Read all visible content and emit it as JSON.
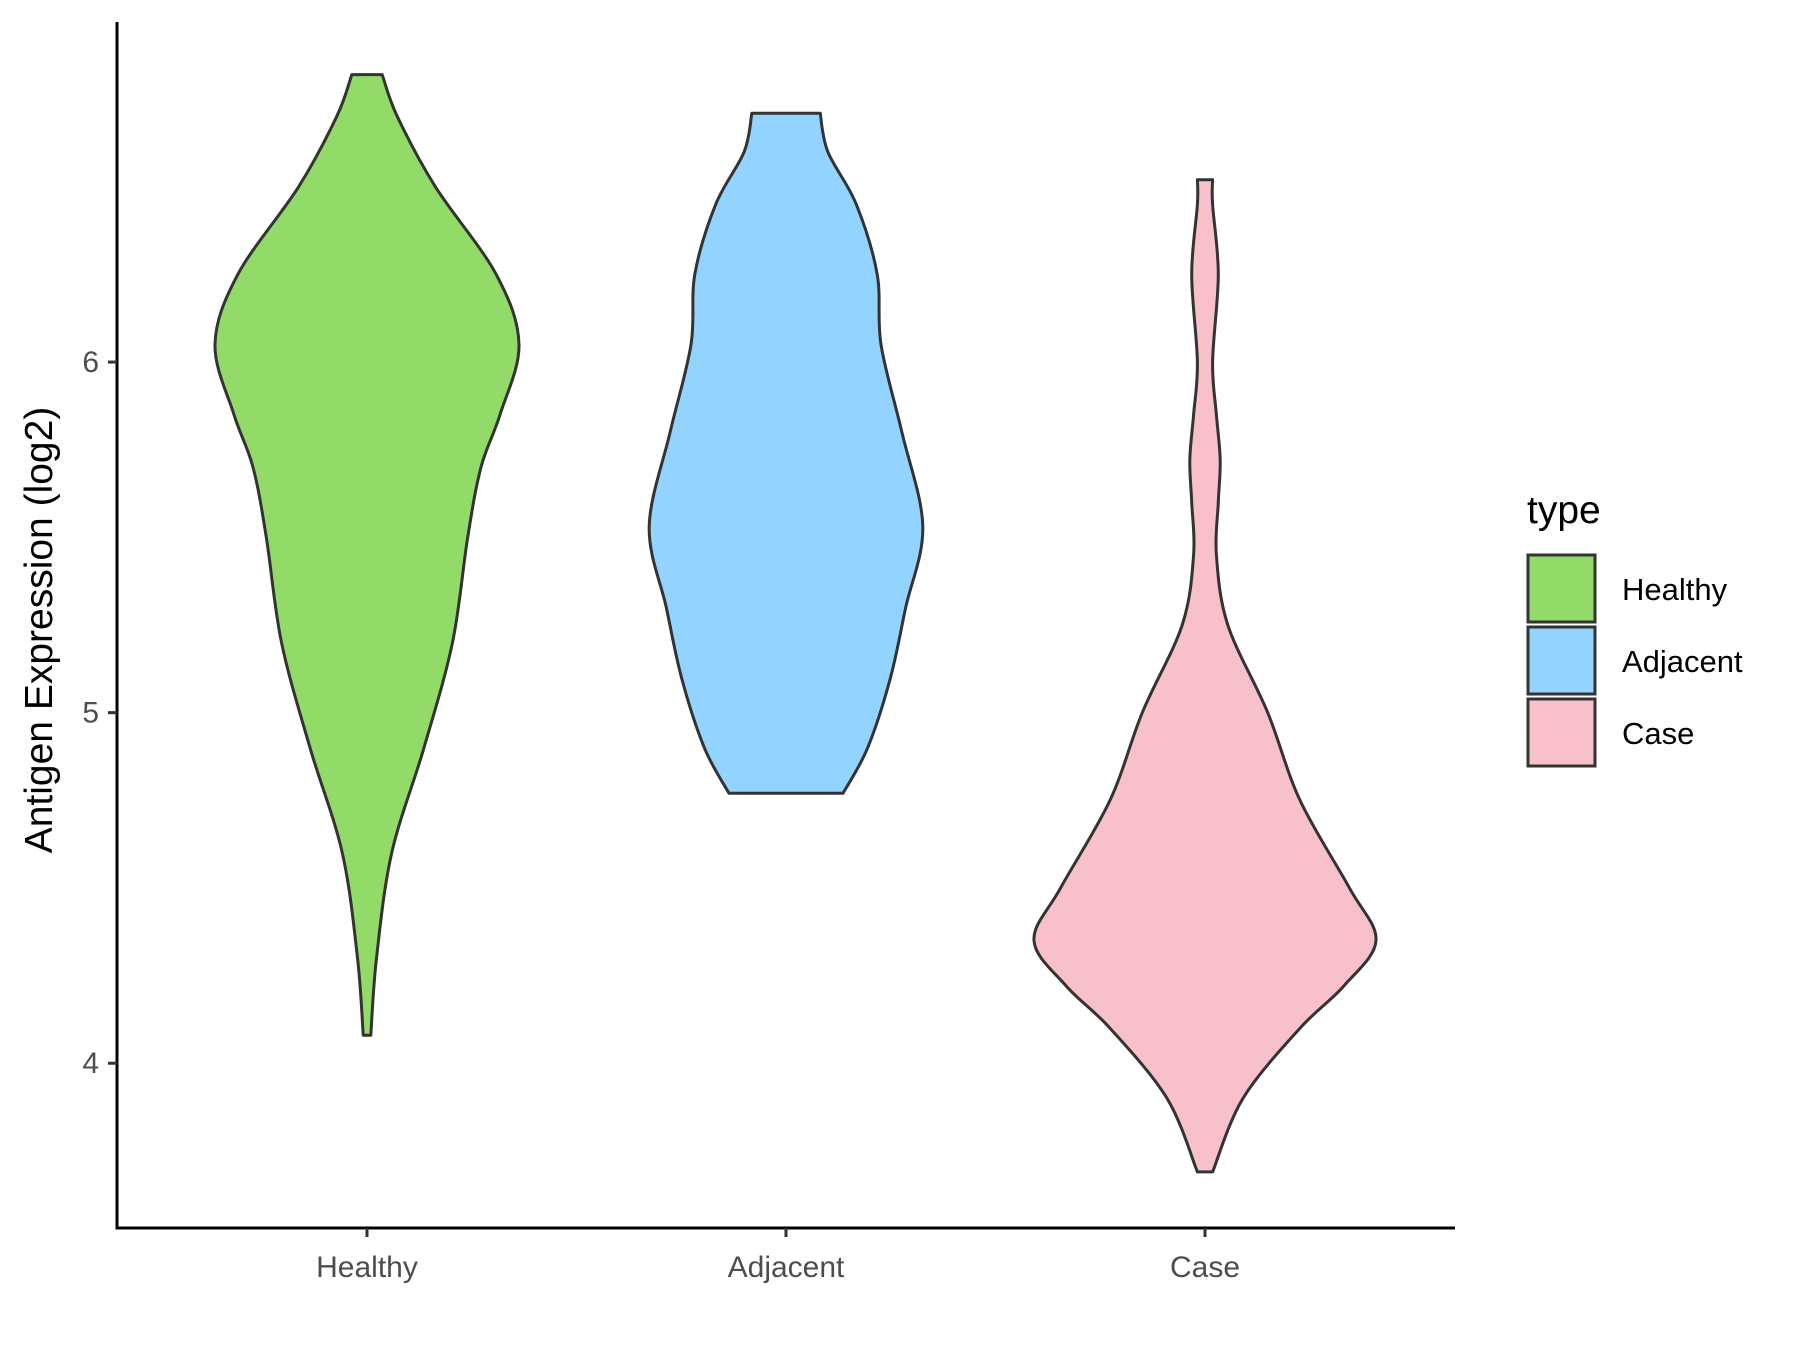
{
  "chart_data": {
    "type": "violin",
    "title": "",
    "xlabel": "",
    "ylabel": "Antigen Expression (log2)",
    "categories": [
      "Healthy",
      "Adjacent",
      "Case"
    ],
    "ylim": [
      3.53,
      6.97
    ],
    "yticks": [
      4,
      5,
      6
    ],
    "grid": false,
    "legend": {
      "title": "type",
      "position": "right",
      "entries": [
        "Healthy",
        "Adjacent",
        "Case"
      ]
    },
    "colors": {
      "Healthy": "#93db69",
      "Adjacent": "#93d3ff",
      "Case": "#f7c0cb",
      "outline": "#333333"
    },
    "series": [
      {
        "category": "Healthy",
        "min": 4.08,
        "max": 6.82,
        "density": [
          [
            4.08,
            0.02
          ],
          [
            4.3,
            0.05
          ],
          [
            4.6,
            0.13
          ],
          [
            4.9,
            0.3
          ],
          [
            5.2,
            0.45
          ],
          [
            5.5,
            0.53
          ],
          [
            5.7,
            0.6
          ],
          [
            5.85,
            0.7
          ],
          [
            6.05,
            0.8
          ],
          [
            6.25,
            0.68
          ],
          [
            6.5,
            0.36
          ],
          [
            6.7,
            0.16
          ],
          [
            6.82,
            0.08
          ]
        ]
      },
      {
        "category": "Adjacent",
        "min": 4.77,
        "max": 6.71,
        "density": [
          [
            4.77,
            0.3
          ],
          [
            4.9,
            0.43
          ],
          [
            5.1,
            0.55
          ],
          [
            5.3,
            0.63
          ],
          [
            5.53,
            0.72
          ],
          [
            5.8,
            0.61
          ],
          [
            6.05,
            0.5
          ],
          [
            6.25,
            0.48
          ],
          [
            6.45,
            0.37
          ],
          [
            6.6,
            0.22
          ],
          [
            6.71,
            0.18
          ]
        ]
      },
      {
        "category": "Case",
        "min": 3.69,
        "max": 6.52,
        "density": [
          [
            3.69,
            0.04
          ],
          [
            3.9,
            0.2
          ],
          [
            4.1,
            0.5
          ],
          [
            4.22,
            0.73
          ],
          [
            4.35,
            0.9
          ],
          [
            4.5,
            0.76
          ],
          [
            4.75,
            0.5
          ],
          [
            5.0,
            0.33
          ],
          [
            5.25,
            0.12
          ],
          [
            5.45,
            0.06
          ],
          [
            5.6,
            0.07
          ],
          [
            5.72,
            0.08
          ],
          [
            5.85,
            0.06
          ],
          [
            6.0,
            0.04
          ],
          [
            6.25,
            0.07
          ],
          [
            6.45,
            0.04
          ],
          [
            6.52,
            0.04
          ]
        ]
      }
    ]
  }
}
